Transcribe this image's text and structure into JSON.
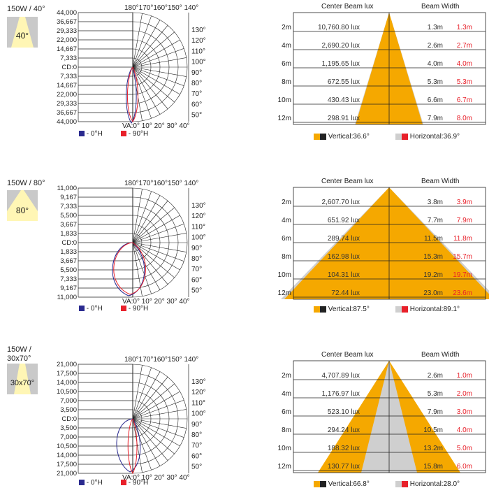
{
  "colors": {
    "beam_orange": "#f5a800",
    "beam_grey": "#cfcfcf",
    "legend_blue": "#2a2a8f",
    "legend_red": "#e8202a",
    "dark": "#222222",
    "icon_bg": "#c8c8c8",
    "icon_beam": "#fff6b5"
  },
  "sections": [
    {
      "title": "150W / 40°",
      "icon_label": "40°",
      "cd_labels": [
        "44,000",
        "36,667",
        "29,333",
        "22,000",
        "14,667",
        "7,333",
        "CD:0",
        "7,333",
        "14,667",
        "22,000",
        "29,333",
        "36,667",
        "44,000"
      ],
      "top_angles": "180°170°160°150° 140°",
      "side_angles": [
        "130°",
        "120°",
        "110°",
        "100°",
        "90°",
        "80°",
        "70°",
        "60°",
        "50°"
      ],
      "bottom_angles": "VA:0° 10° 20° 30° 40°",
      "legend_h0": "- 0°H",
      "legend_h90": "- 90°H",
      "header_lux": "Center Beam lux",
      "header_width": "Beam Width",
      "rows": [
        {
          "dist": "2m",
          "lux": "10,760.80 lux",
          "w1": "1.3m",
          "w2": "1.3m"
        },
        {
          "dist": "4m",
          "lux": "2,690.20 lux",
          "w1": "2.6m",
          "w2": "2.7m"
        },
        {
          "dist": "6m",
          "lux": "1,195.65 lux",
          "w1": "4.0m",
          "w2": "4.0m"
        },
        {
          "dist": "8m",
          "lux": "672.55 lux",
          "w1": "5.3m",
          "w2": "5.3m"
        },
        {
          "dist": "10m",
          "lux": "430.43 lux",
          "w1": "6.6m",
          "w2": "6.7m"
        },
        {
          "dist": "12m",
          "lux": "298.91 lux",
          "w1": "7.9m",
          "w2": "8.0m"
        }
      ],
      "vertical": "Vertical:36.6°",
      "horizontal": "Horizontal:36.9°"
    },
    {
      "title": "150W / 80°",
      "icon_label": "80°",
      "cd_labels": [
        "11,000",
        "9,167",
        "7,333",
        "5,500",
        "3,667",
        "1,833",
        "CD:0",
        "1,833",
        "3,667",
        "5,500",
        "7,333",
        "9,167",
        "11,000"
      ],
      "top_angles": "180°170°160°150° 140°",
      "side_angles": [
        "130°",
        "120°",
        "110°",
        "100°",
        "90°",
        "80°",
        "70°",
        "60°",
        "50°"
      ],
      "bottom_angles": "VA:0° 10° 20° 30° 40°",
      "legend_h0": "- 0°H",
      "legend_h90": "- 90°H",
      "header_lux": "Center Beam lux",
      "header_width": "Beam Width",
      "rows": [
        {
          "dist": "2m",
          "lux": "2,607.70 lux",
          "w1": "3.8m",
          "w2": "3.9m"
        },
        {
          "dist": "4m",
          "lux": "651.92 lux",
          "w1": "7.7m",
          "w2": "7.9m"
        },
        {
          "dist": "6m",
          "lux": "289.74 lux",
          "w1": "11.5m",
          "w2": "11.8m"
        },
        {
          "dist": "8m",
          "lux": "162.98 lux",
          "w1": "15.3m",
          "w2": "15.7m"
        },
        {
          "dist": "10m",
          "lux": "104.31 lux",
          "w1": "19.2m",
          "w2": "19.7m"
        },
        {
          "dist": "12m",
          "lux": "72.44 lux",
          "w1": "23.0m",
          "w2": "23.6m"
        }
      ],
      "vertical": "Vertical:87.5°",
      "horizontal": "Horizontal:89.1°"
    },
    {
      "title": "150W /\n30x70°",
      "icon_label": "30x70°",
      "cd_labels": [
        "21,000",
        "17,500",
        "14,000",
        "10,500",
        "7,000",
        "3,500",
        "CD:0",
        "3,500",
        "7,000",
        "10,500",
        "14,000",
        "17,500",
        "21,000"
      ],
      "top_angles": "180°170°160°150° 140°",
      "side_angles": [
        "130°",
        "120°",
        "110°",
        "100°",
        "90°",
        "80°",
        "70°",
        "60°",
        "50°"
      ],
      "bottom_angles": "VA:0° 10° 20° 30° 40°",
      "legend_h0": "- 0°H",
      "legend_h90": "- 90°H",
      "header_lux": "Center Beam lux",
      "header_width": "Beam Width",
      "rows": [
        {
          "dist": "2m",
          "lux": "4,707.89 lux",
          "w1": "2.6m",
          "w2": "1.0m"
        },
        {
          "dist": "4m",
          "lux": "1,176.97 lux",
          "w1": "5.3m",
          "w2": "2.0m"
        },
        {
          "dist": "6m",
          "lux": "523.10 lux",
          "w1": "7.9m",
          "w2": "3.0m"
        },
        {
          "dist": "8m",
          "lux": "294.24 lux",
          "w1": "10.5m",
          "w2": "4.0m"
        },
        {
          "dist": "10m",
          "lux": "188.32 lux",
          "w1": "13.2m",
          "w2": "5.0m"
        },
        {
          "dist": "12m",
          "lux": "130.77 lux",
          "w1": "15.8m",
          "w2": "6.0m"
        }
      ],
      "vertical": "Vertical:66.8°",
      "horizontal": "Horizontal:28.0°"
    }
  ]
}
